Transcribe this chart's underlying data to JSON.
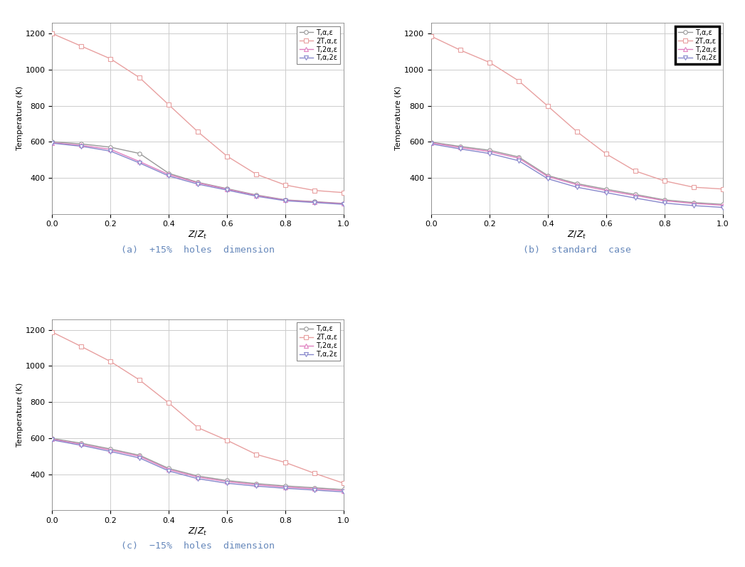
{
  "x": [
    0.0,
    0.1,
    0.2,
    0.3,
    0.4,
    0.5,
    0.6,
    0.7,
    0.8,
    0.9,
    1.0
  ],
  "case_a": {
    "T_alpha_eps": [
      600,
      588,
      570,
      535,
      425,
      375,
      340,
      305,
      278,
      268,
      258
    ],
    "2T_alpha_eps": [
      1200,
      1130,
      1060,
      955,
      805,
      655,
      520,
      420,
      360,
      330,
      318
    ],
    "T_2alpha_eps": [
      595,
      580,
      558,
      490,
      418,
      372,
      337,
      302,
      276,
      266,
      256
    ],
    "T_alpha_2eps": [
      592,
      575,
      548,
      482,
      410,
      365,
      332,
      298,
      273,
      263,
      253
    ]
  },
  "case_b": {
    "T_alpha_eps": [
      598,
      574,
      553,
      516,
      413,
      368,
      337,
      308,
      278,
      263,
      253
    ],
    "2T_alpha_eps": [
      1185,
      1108,
      1040,
      938,
      798,
      656,
      533,
      438,
      383,
      348,
      338
    ],
    "T_2alpha_eps": [
      594,
      568,
      546,
      509,
      407,
      362,
      330,
      302,
      273,
      258,
      248
    ],
    "T_alpha_2eps": [
      588,
      560,
      535,
      495,
      395,
      348,
      318,
      288,
      260,
      246,
      236
    ]
  },
  "case_c": {
    "T_alpha_eps": [
      598,
      572,
      540,
      505,
      432,
      390,
      365,
      348,
      335,
      325,
      315
    ],
    "2T_alpha_eps": [
      1188,
      1108,
      1025,
      922,
      795,
      658,
      588,
      510,
      465,
      405,
      350
    ],
    "T_2alpha_eps": [
      594,
      566,
      534,
      499,
      426,
      384,
      359,
      342,
      329,
      319,
      309
    ],
    "T_alpha_2eps": [
      590,
      560,
      526,
      490,
      418,
      375,
      350,
      334,
      322,
      312,
      302
    ]
  },
  "colors": {
    "T_alpha_eps": "#999999",
    "2T_alpha_eps": "#e8a0a0",
    "T_2alpha_eps": "#e080c0",
    "T_alpha_2eps": "#8888cc"
  },
  "legend_labels": [
    "T,α,ε",
    "2T,α,ε",
    "T,2α,ε",
    "T,α,2ε"
  ],
  "ylabel": "Temperature (K)",
  "ylim": [
    200,
    1260
  ],
  "xlim": [
    0.0,
    1.0
  ],
  "yticks": [
    400,
    600,
    800,
    1000,
    1200
  ],
  "xticks": [
    0.0,
    0.2,
    0.4,
    0.6,
    0.8,
    1.0
  ],
  "subtitles": [
    "(a)  +15%  holes  dimension",
    "(b)  standard  case",
    "(c)  −15%  holes  dimension"
  ],
  "subtitle_color": "#6688bb",
  "background_color": "#ffffff",
  "grid_color": "#cccccc",
  "figsize": [
    10.47,
    7.97
  ],
  "dpi": 100
}
